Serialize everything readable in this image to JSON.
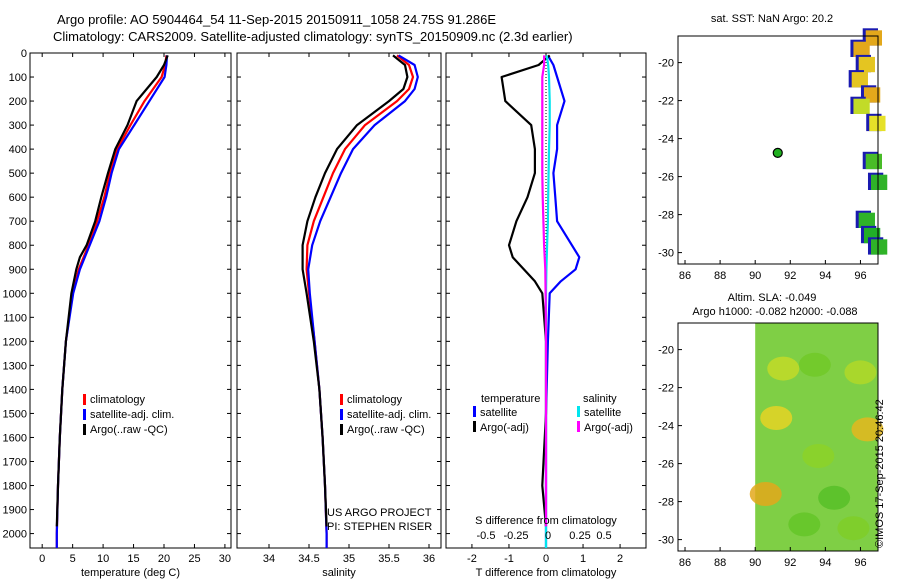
{
  "header": {
    "line1": "Argo profile: AO 5904464_54 11-Sep-2015 20150911_1058 24.75S 91.286E",
    "line2": "Climatology: CARS2009. Satellite-adjusted climatology: synTS_20150909.nc (2.3d earlier)"
  },
  "colors": {
    "climatology": "#ff0000",
    "satellite": "#0000ff",
    "argo": "#000000",
    "sal_sat": "#00e5ee",
    "sal_argo": "#ff00ff"
  },
  "depth_axis": {
    "ticks": [
      "0",
      "100",
      "200",
      "300",
      "400",
      "500",
      "600",
      "700",
      "800",
      "900",
      "1000",
      "1100",
      "1200",
      "1300",
      "1400",
      "1500",
      "1600",
      "1700",
      "1800",
      "1900",
      "2000"
    ]
  },
  "chart_data": [
    {
      "type": "line",
      "name": "temperature-profile",
      "xlabel": "temperature (deg C)",
      "ylabel": "depth",
      "xlim": [
        -2,
        31
      ],
      "ylim": [
        0,
        2060
      ],
      "xticks": [
        0,
        5,
        10,
        15,
        20,
        25,
        30
      ],
      "legend": [
        "climatology",
        "satellite-adj. clim.",
        "Argo(..raw -QC)"
      ],
      "series": [
        {
          "name": "climatology",
          "depth": [
            10,
            50,
            100,
            200,
            300,
            400,
            500,
            600,
            700,
            800,
            900,
            1000,
            1200,
            1400,
            1600,
            1800,
            2000,
            2060
          ],
          "values": [
            20.4,
            20.2,
            19.6,
            16.8,
            14.5,
            12.3,
            11.1,
            10.2,
            9.0,
            7.6,
            6.0,
            5.0,
            3.9,
            3.3,
            2.9,
            2.6,
            2.4,
            2.4
          ]
        },
        {
          "name": "satellite-adj. clim.",
          "depth": [
            10,
            50,
            100,
            200,
            300,
            400,
            500,
            600,
            700,
            800,
            900,
            1000,
            1200,
            1400,
            1600,
            1800,
            2000,
            2060
          ],
          "values": [
            20.5,
            20.4,
            20.1,
            17.6,
            15.1,
            12.6,
            11.4,
            10.5,
            9.4,
            7.8,
            6.2,
            5.1,
            3.9,
            3.3,
            2.9,
            2.6,
            2.4,
            2.4
          ]
        },
        {
          "name": "Argo(..raw -QC)",
          "depth": [
            10,
            50,
            100,
            200,
            300,
            400,
            500,
            600,
            700,
            800,
            850,
            900,
            1000,
            1200,
            1400,
            1600,
            1800,
            1970
          ],
          "values": [
            20.6,
            20.0,
            18.8,
            15.5,
            14.0,
            12.0,
            10.8,
            9.7,
            8.7,
            7.3,
            6.2,
            5.6,
            4.8,
            3.9,
            3.3,
            2.9,
            2.6,
            2.4
          ]
        }
      ]
    },
    {
      "type": "line",
      "name": "salinity-profile",
      "xlabel": "salinity",
      "ylabel": "depth",
      "xlim": [
        33.6,
        36.15
      ],
      "ylim": [
        0,
        2060
      ],
      "xticks": [
        34,
        34.5,
        35,
        35.5,
        36
      ],
      "legend": [
        "climatology",
        "satellite-adj. clim.",
        "Argo(..raw -QC)"
      ],
      "annotations": [
        "US ARGO PROJECT",
        "PI: STEPHEN RISER"
      ],
      "series": [
        {
          "name": "climatology",
          "depth": [
            10,
            50,
            100,
            150,
            200,
            300,
            400,
            500,
            600,
            700,
            800,
            900,
            1000,
            1200,
            1400,
            1600,
            1800,
            2000,
            2060
          ],
          "values": [
            35.6,
            35.75,
            35.8,
            35.75,
            35.6,
            35.2,
            34.95,
            34.8,
            34.68,
            34.56,
            34.48,
            34.47,
            34.5,
            34.57,
            34.63,
            34.67,
            34.7,
            34.72,
            34.72
          ]
        },
        {
          "name": "satellite-adj. clim.",
          "depth": [
            10,
            50,
            100,
            150,
            200,
            300,
            400,
            500,
            600,
            700,
            800,
            900,
            1000,
            1200,
            1400,
            1600,
            1800,
            2000,
            2060
          ],
          "values": [
            35.62,
            35.82,
            35.86,
            35.82,
            35.7,
            35.32,
            35.05,
            34.9,
            34.77,
            34.64,
            34.54,
            34.49,
            34.51,
            34.57,
            34.63,
            34.67,
            34.7,
            34.72,
            34.72
          ]
        },
        {
          "name": "Argo(..raw -QC)",
          "depth": [
            10,
            50,
            100,
            150,
            200,
            300,
            400,
            500,
            600,
            700,
            800,
            900,
            1000,
            1200,
            1400,
            1600,
            1800,
            1970
          ],
          "values": [
            35.55,
            35.7,
            35.73,
            35.68,
            35.5,
            35.1,
            34.85,
            34.7,
            34.58,
            34.48,
            34.42,
            34.42,
            34.47,
            34.56,
            34.63,
            34.67,
            34.7,
            34.72
          ]
        }
      ]
    },
    {
      "type": "line",
      "name": "difference-profile",
      "xlabel": "T difference from climatology",
      "ylabel": "depth",
      "xlim": [
        -2.7,
        2.7
      ],
      "ylim": [
        0,
        2060
      ],
      "xticks": [
        -2,
        -1,
        0,
        1,
        2
      ],
      "secondary_xlabel": "S difference from climatology",
      "secondary_xticks": [
        "-0.5",
        "-0.25",
        "0",
        "0.25",
        "0.5"
      ],
      "legend": {
        "temperature": [
          "satellite",
          "Argo(-adj)"
        ],
        "salinity": [
          "satellite",
          "Argo(-adj)"
        ]
      },
      "legend_titles": [
        "temperature",
        "salinity"
      ],
      "series": [
        {
          "name": "temperature satellite",
          "depth": [
            10,
            50,
            100,
            200,
            300,
            400,
            500,
            600,
            700,
            800,
            850,
            900,
            950,
            1000,
            1200,
            1500,
            1800,
            2000,
            2060
          ],
          "values": [
            0.05,
            0.2,
            0.3,
            0.5,
            0.3,
            0.3,
            0.2,
            0.25,
            0.3,
            0.7,
            0.9,
            0.8,
            0.4,
            0.1,
            0.05,
            0,
            0,
            0,
            0
          ]
        },
        {
          "name": "temperature Argo(-adj)",
          "depth": [
            10,
            50,
            100,
            200,
            300,
            400,
            500,
            600,
            700,
            800,
            850,
            900,
            950,
            1000,
            1200,
            1500,
            1800,
            1970
          ],
          "values": [
            0.1,
            -0.2,
            -1.2,
            -1.1,
            -0.4,
            -0.3,
            -0.3,
            -0.5,
            -0.8,
            -1.0,
            -0.9,
            -0.6,
            -0.3,
            -0.1,
            0,
            0,
            -0.1,
            0
          ]
        },
        {
          "name": "salinity satellite",
          "depth": [
            10,
            50,
            100,
            200,
            300,
            400,
            500,
            600,
            700,
            800,
            900,
            1000,
            1200,
            1500,
            1800,
            2000,
            2060
          ],
          "values": [
            0.02,
            0.06,
            0.08,
            0.1,
            0.1,
            0.08,
            0.07,
            0.06,
            0.05,
            0.03,
            0.01,
            0.0,
            0.0,
            0.0,
            0.0,
            0.0,
            0.0
          ]
        },
        {
          "name": "salinity Argo(-adj)",
          "depth": [
            10,
            50,
            100,
            200,
            300,
            400,
            500,
            600,
            700,
            800,
            900,
            1000,
            1200,
            1500,
            1800,
            1970
          ],
          "values": [
            -0.05,
            -0.05,
            -0.1,
            -0.1,
            -0.1,
            -0.1,
            -0.1,
            -0.09,
            -0.07,
            -0.05,
            -0.02,
            -0.01,
            0,
            0,
            0,
            0
          ]
        }
      ]
    },
    {
      "type": "heatmap",
      "name": "sst-map",
      "title": "sat. SST: NaN Argo: 20.2",
      "xlim": [
        85.6,
        97
      ],
      "ylim": [
        -30.6,
        -18.6
      ],
      "xticks": [
        86,
        88,
        90,
        92,
        94,
        96
      ],
      "yticks": [
        -20,
        -22,
        -24,
        -26,
        -28,
        -30
      ],
      "argo_position": {
        "lon": 91.286,
        "lat": -24.75
      }
    },
    {
      "type": "heatmap",
      "name": "sla-map",
      "title_line1": "Altim. SLA: -0.049",
      "title_line2": "Argo h1000: -0.082 h2000: -0.088",
      "xlim": [
        85.6,
        97
      ],
      "ylim": [
        -30.6,
        -18.6
      ],
      "xticks": [
        86,
        88,
        90,
        92,
        94,
        96
      ],
      "yticks": [
        -20,
        -22,
        -24,
        -26,
        -28,
        -30
      ]
    }
  ],
  "stamp": "©IMOS 17-Sep-2015 20:46:42"
}
